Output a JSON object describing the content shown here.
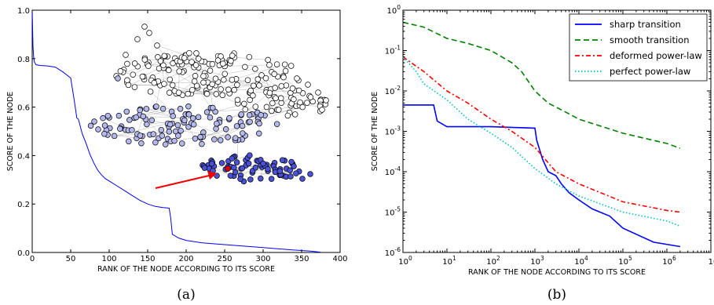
{
  "chart_data": [
    {
      "type": "line",
      "panel_label": "(a)",
      "xlabel": "RANK OF THE NODE ACCORDING TO ITS SCORE",
      "ylabel": "SCORE OF THE NODE",
      "xlim": [
        0,
        400
      ],
      "ylim": [
        0,
        1.0
      ],
      "xticks": [
        0,
        50,
        100,
        150,
        200,
        250,
        300,
        350,
        400
      ],
      "xtick_labels": [
        "0",
        "50",
        "100",
        "150",
        "200",
        "250",
        "300",
        "350",
        "400"
      ],
      "yticks": [
        0.0,
        0.2,
        0.4,
        0.6,
        0.8,
        1.0
      ],
      "ytick_labels": [
        "0.0",
        "0.2",
        "0.4",
        "0.6",
        "0.8",
        "1.0"
      ],
      "grid": false,
      "series": [
        {
          "color": "#0000ff",
          "x": [
            0,
            1,
            2,
            3,
            4,
            5,
            10,
            20,
            30,
            40,
            50,
            55,
            58,
            60,
            65,
            70,
            75,
            80,
            85,
            90,
            95,
            100,
            110,
            120,
            130,
            140,
            150,
            160,
            170,
            175,
            178,
            180,
            182,
            190,
            200,
            220,
            240,
            260,
            280,
            300,
            320,
            340,
            360,
            370,
            375
          ],
          "y": [
            1.0,
            0.85,
            0.8,
            0.785,
            0.78,
            0.775,
            0.772,
            0.77,
            0.765,
            0.745,
            0.72,
            0.62,
            0.555,
            0.55,
            0.49,
            0.45,
            0.405,
            0.37,
            0.34,
            0.32,
            0.305,
            0.295,
            0.275,
            0.255,
            0.235,
            0.215,
            0.2,
            0.19,
            0.185,
            0.184,
            0.183,
            0.14,
            0.075,
            0.06,
            0.05,
            0.04,
            0.035,
            0.03,
            0.025,
            0.02,
            0.015,
            0.01,
            0.006,
            0.003,
            0.001
          ]
        }
      ],
      "inset": {
        "type": "network",
        "node_colors": [
          "#ffffff",
          "#b4b8ec",
          "#4a52d8"
        ],
        "highlight_node_color": "#dd0000",
        "arrow_color": "#ee0000"
      }
    },
    {
      "type": "line",
      "panel_label": "(b)",
      "xlabel": "RANK OF THE NODE ACCORDING TO ITS SCORE",
      "ylabel": "SCORE OF THE NODE",
      "xscale": "log",
      "yscale": "log",
      "xlim": [
        1,
        10000000
      ],
      "ylim": [
        1e-06,
        1
      ],
      "xticks": [
        1,
        10,
        100,
        1000,
        10000,
        100000,
        1000000,
        10000000
      ],
      "xtick_labels": [
        {
          "base": "10",
          "exp": "0"
        },
        {
          "base": "10",
          "exp": "1"
        },
        {
          "base": "10",
          "exp": "2"
        },
        {
          "base": "10",
          "exp": "3"
        },
        {
          "base": "10",
          "exp": "4"
        },
        {
          "base": "10",
          "exp": "5"
        },
        {
          "base": "10",
          "exp": "6"
        },
        {
          "base": "10",
          "exp": ""
        }
      ],
      "yticks": [
        1e-06,
        1e-05,
        0.0001,
        0.001,
        0.01,
        0.1,
        1
      ],
      "ytick_labels": [
        {
          "base": "10",
          "exp": "-6"
        },
        {
          "base": "10",
          "exp": "-5"
        },
        {
          "base": "10",
          "exp": "-4"
        },
        {
          "base": "10",
          "exp": "-3"
        },
        {
          "base": "10",
          "exp": "-2"
        },
        {
          "base": "10",
          "exp": "-1"
        },
        {
          "base": "10",
          "exp": "0"
        }
      ],
      "grid": false,
      "legend_position": "top-right",
      "series": [
        {
          "name": "sharp transition",
          "color": "#0000ff",
          "dash": "solid",
          "x": [
            1,
            5,
            6,
            10,
            100,
            1000,
            1100,
            1500,
            2000,
            3000,
            4000,
            6000,
            10000,
            20000,
            50000,
            100000,
            500000,
            2000000
          ],
          "y": [
            0.0045,
            0.0045,
            0.0018,
            0.0013,
            0.0013,
            0.0012,
            0.0006,
            0.0002,
            0.0001,
            8e-05,
            5e-05,
            3e-05,
            2e-05,
            1.2e-05,
            8e-06,
            4e-06,
            1.8e-06,
            1.4e-06
          ]
        },
        {
          "name": "smooth transition",
          "color": "#008000",
          "dash": "dashed",
          "x": [
            1,
            3,
            10,
            30,
            100,
            300,
            500,
            1000,
            2000,
            5000,
            10000,
            100000,
            1000000,
            2000000
          ],
          "y": [
            0.5,
            0.38,
            0.2,
            0.15,
            0.1,
            0.05,
            0.03,
            0.01,
            0.005,
            0.003,
            0.002,
            0.0009,
            0.0005,
            0.00038
          ]
        },
        {
          "name": "deformed power-law",
          "color": "#ff0000",
          "dash": "dashdot",
          "x": [
            1,
            3,
            10,
            30,
            100,
            300,
            1000,
            3000,
            10000,
            100000,
            1000000,
            2000000
          ],
          "y": [
            0.07,
            0.03,
            0.01,
            0.005,
            0.002,
            0.001,
            0.0004,
            0.0001,
            5e-05,
            1.8e-05,
            1.1e-05,
            1e-05
          ]
        },
        {
          "name": "perfect power-law",
          "color": "#00bfbf",
          "dash": "dotted",
          "x": [
            1,
            2,
            3,
            10,
            30,
            100,
            300,
            1000,
            3000,
            10000,
            100000,
            1000000,
            2000000
          ],
          "y": [
            0.07,
            0.03,
            0.015,
            0.006,
            0.002,
            0.0009,
            0.0004,
            0.00012,
            5e-05,
            2.5e-05,
            1e-05,
            6e-06,
            4.5e-06
          ]
        }
      ]
    }
  ]
}
